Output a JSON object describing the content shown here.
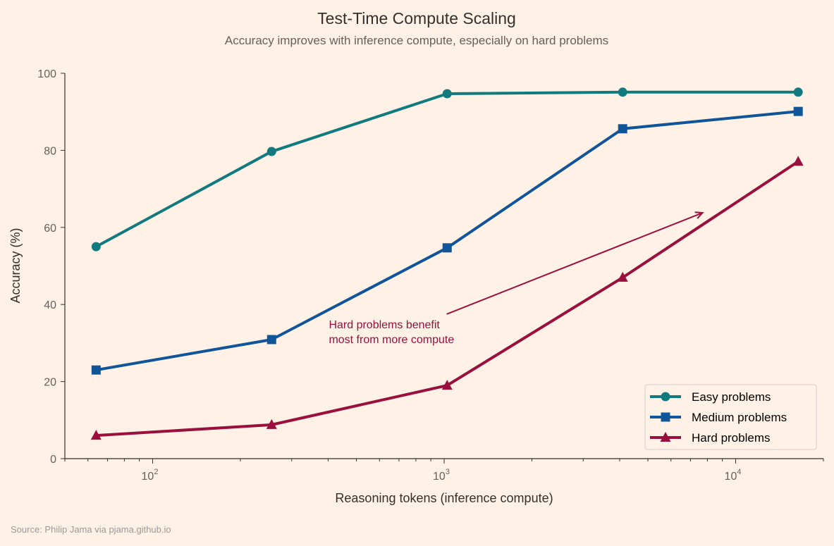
{
  "chart_data": {
    "type": "line",
    "title": "Test-Time Compute Scaling",
    "subtitle": "Accuracy improves with inference compute, especially on hard problems",
    "xlabel": "Reasoning tokens (inference compute)",
    "ylabel": "Accuracy (%)",
    "xscale": "log",
    "xlim": [
      50,
      20000
    ],
    "ylim": [
      0,
      100
    ],
    "xticks": [
      {
        "value": 100,
        "base": "10",
        "exp": "2"
      },
      {
        "value": 1000,
        "base": "10",
        "exp": "3"
      },
      {
        "value": 10000,
        "base": "10",
        "exp": "4"
      }
    ],
    "yticks": [
      0,
      20,
      40,
      60,
      80,
      100
    ],
    "grid": false,
    "legend": "bottom-right",
    "x": [
      64,
      256,
      1024,
      4096,
      16384
    ],
    "series": [
      {
        "name": "Easy problems",
        "marker": "circle",
        "color": "#117a7f",
        "values": [
          55.0,
          79.7,
          94.7,
          95.1,
          95.1
        ]
      },
      {
        "name": "Medium problems",
        "marker": "square",
        "color": "#10559a",
        "values": [
          23.0,
          30.9,
          54.7,
          85.6,
          90.1
        ]
      },
      {
        "name": "Hard problems",
        "marker": "triangle",
        "color": "#990f3d",
        "values": [
          6.0,
          8.8,
          19.0,
          47.0,
          77.1
        ]
      }
    ],
    "annotation": {
      "lines": [
        "Hard problems benefit",
        "most from more compute"
      ],
      "color": "#990f3d",
      "text_at": [
        400,
        33
      ],
      "arrow_from": [
        1020,
        37.5
      ],
      "arrow_to": [
        7700,
        63.8
      ]
    },
    "source": "Source: Philip Jama via pjama.github.io"
  }
}
